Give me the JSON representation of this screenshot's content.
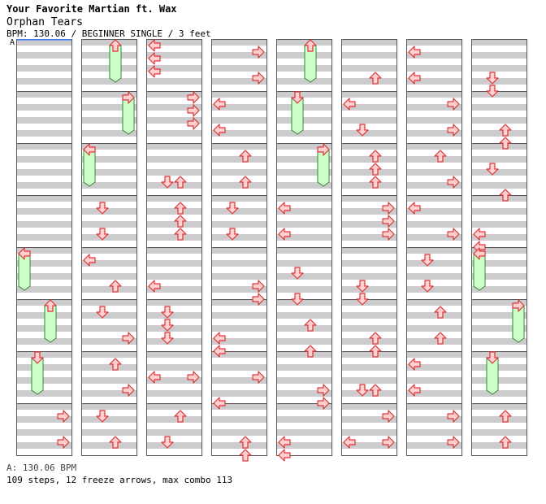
{
  "song": {
    "artist": "Your Favorite Martian ft. Wax",
    "title": "Orphan Tears",
    "info": "BPM: 130.06 / BEGINNER SINGLE / 3 feet"
  },
  "bpm_marker": "A",
  "footer": {
    "bpm_line": "A: 130.06 BPM",
    "stats": "109 steps, 12 freeze arrows, max combo 113"
  },
  "colors": {
    "stripe_gray": "#cccccc",
    "stripe_white": "#ffffff",
    "arrow_fill": "#ffd0d0",
    "arrow_stroke": "#dd3333",
    "freeze_fill": "#ccffcc",
    "freeze_stroke": "#338833",
    "marker_line": "#4488ff"
  },
  "chart": {
    "columns": 8,
    "measures_per_column": 8,
    "beats_per_measure": 4,
    "notes": [
      {
        "c": 0,
        "m": 4,
        "b": 0,
        "l": "L",
        "hold": 2.5
      },
      {
        "c": 0,
        "m": 5,
        "b": 0,
        "l": "U",
        "hold": 2.5
      },
      {
        "c": 0,
        "m": 6,
        "b": 0,
        "l": "D",
        "hold": 2.5
      },
      {
        "c": 0,
        "m": 7,
        "b": 0.5,
        "l": "R"
      },
      {
        "c": 0,
        "m": 7,
        "b": 2.5,
        "l": "R"
      },
      {
        "c": 1,
        "m": 0,
        "b": 0,
        "l": "U",
        "hold": 2.5
      },
      {
        "c": 1,
        "m": 1,
        "b": 0,
        "l": "R",
        "hold": 2.5
      },
      {
        "c": 1,
        "m": 2,
        "b": 0,
        "l": "L",
        "hold": 2.5
      },
      {
        "c": 1,
        "m": 3,
        "b": 0.5,
        "l": "D"
      },
      {
        "c": 1,
        "m": 3,
        "b": 2.5,
        "l": "D"
      },
      {
        "c": 1,
        "m": 4,
        "b": 0.5,
        "l": "L"
      },
      {
        "c": 1,
        "m": 4,
        "b": 2.5,
        "l": "U"
      },
      {
        "c": 1,
        "m": 5,
        "b": 0.5,
        "l": "D"
      },
      {
        "c": 1,
        "m": 5,
        "b": 2.5,
        "l": "R"
      },
      {
        "c": 1,
        "m": 6,
        "b": 0.5,
        "l": "U"
      },
      {
        "c": 1,
        "m": 6,
        "b": 2.5,
        "l": "R"
      },
      {
        "c": 1,
        "m": 7,
        "b": 0.5,
        "l": "D"
      },
      {
        "c": 1,
        "m": 7,
        "b": 2.5,
        "l": "U"
      },
      {
        "c": 2,
        "m": 0,
        "b": 0,
        "l": "L"
      },
      {
        "c": 2,
        "m": 0,
        "b": 1,
        "l": "L"
      },
      {
        "c": 2,
        "m": 0,
        "b": 2,
        "l": "L"
      },
      {
        "c": 2,
        "m": 1,
        "b": 0,
        "l": "R"
      },
      {
        "c": 2,
        "m": 1,
        "b": 1,
        "l": "R"
      },
      {
        "c": 2,
        "m": 1,
        "b": 2,
        "l": "R"
      },
      {
        "c": 2,
        "m": 2,
        "b": 2.5,
        "l": "D"
      },
      {
        "c": 2,
        "m": 2,
        "b": 2.5,
        "l": "U"
      },
      {
        "c": 2,
        "m": 3,
        "b": 0.5,
        "l": "U"
      },
      {
        "c": 2,
        "m": 3,
        "b": 1.5,
        "l": "U"
      },
      {
        "c": 2,
        "m": 3,
        "b": 2.5,
        "l": "U"
      },
      {
        "c": 2,
        "m": 4,
        "b": 2.5,
        "l": "L"
      },
      {
        "c": 2,
        "m": 5,
        "b": 0.5,
        "l": "D"
      },
      {
        "c": 2,
        "m": 5,
        "b": 1.5,
        "l": "D"
      },
      {
        "c": 2,
        "m": 5,
        "b": 2.5,
        "l": "D"
      },
      {
        "c": 2,
        "m": 6,
        "b": 1.5,
        "l": "L"
      },
      {
        "c": 2,
        "m": 6,
        "b": 1.5,
        "l": "R"
      },
      {
        "c": 2,
        "m": 7,
        "b": 0.5,
        "l": "U"
      },
      {
        "c": 2,
        "m": 7,
        "b": 2.5,
        "l": "D"
      },
      {
        "c": 3,
        "m": 0,
        "b": 0.5,
        "l": "R"
      },
      {
        "c": 3,
        "m": 0,
        "b": 2.5,
        "l": "R"
      },
      {
        "c": 3,
        "m": 1,
        "b": 0.5,
        "l": "L"
      },
      {
        "c": 3,
        "m": 1,
        "b": 2.5,
        "l": "L"
      },
      {
        "c": 3,
        "m": 2,
        "b": 0.5,
        "l": "U"
      },
      {
        "c": 3,
        "m": 2,
        "b": 2.5,
        "l": "U"
      },
      {
        "c": 3,
        "m": 3,
        "b": 0.5,
        "l": "D"
      },
      {
        "c": 3,
        "m": 3,
        "b": 2.5,
        "l": "D"
      },
      {
        "c": 3,
        "m": 4,
        "b": 2.5,
        "l": "R"
      },
      {
        "c": 3,
        "m": 4,
        "b": 3.5,
        "l": "R"
      },
      {
        "c": 3,
        "m": 5,
        "b": 2.5,
        "l": "L"
      },
      {
        "c": 3,
        "m": 5,
        "b": 3.5,
        "l": "L"
      },
      {
        "c": 3,
        "m": 6,
        "b": 1.5,
        "l": "R"
      },
      {
        "c": 3,
        "m": 6,
        "b": 3.5,
        "l": "L"
      },
      {
        "c": 3,
        "m": 7,
        "b": 2.5,
        "l": "U"
      },
      {
        "c": 3,
        "m": 7,
        "b": 3.5,
        "l": "U"
      },
      {
        "c": 4,
        "m": 0,
        "b": 0,
        "l": "U",
        "hold": 2.5
      },
      {
        "c": 4,
        "m": 1,
        "b": 0,
        "l": "D",
        "hold": 2.5
      },
      {
        "c": 4,
        "m": 2,
        "b": 0,
        "l": "R",
        "hold": 2.5
      },
      {
        "c": 4,
        "m": 3,
        "b": 0.5,
        "l": "L"
      },
      {
        "c": 4,
        "m": 3,
        "b": 2.5,
        "l": "L"
      },
      {
        "c": 4,
        "m": 4,
        "b": 1.5,
        "l": "D"
      },
      {
        "c": 4,
        "m": 4,
        "b": 3.5,
        "l": "D"
      },
      {
        "c": 4,
        "m": 5,
        "b": 1.5,
        "l": "U"
      },
      {
        "c": 4,
        "m": 5,
        "b": 3.5,
        "l": "U"
      },
      {
        "c": 4,
        "m": 6,
        "b": 2.5,
        "l": "R"
      },
      {
        "c": 4,
        "m": 6,
        "b": 3.5,
        "l": "R"
      },
      {
        "c": 4,
        "m": 7,
        "b": 2.5,
        "l": "L"
      },
      {
        "c": 4,
        "m": 7,
        "b": 3.5,
        "l": "L"
      },
      {
        "c": 5,
        "m": 0,
        "b": 2.5,
        "l": "U"
      },
      {
        "c": 5,
        "m": 1,
        "b": 0.5,
        "l": "L"
      },
      {
        "c": 5,
        "m": 1,
        "b": 2.5,
        "l": "D"
      },
      {
        "c": 5,
        "m": 2,
        "b": 0.5,
        "l": "U"
      },
      {
        "c": 5,
        "m": 2,
        "b": 1.5,
        "l": "U"
      },
      {
        "c": 5,
        "m": 2,
        "b": 2.5,
        "l": "U"
      },
      {
        "c": 5,
        "m": 3,
        "b": 0.5,
        "l": "R"
      },
      {
        "c": 5,
        "m": 3,
        "b": 1.5,
        "l": "R"
      },
      {
        "c": 5,
        "m": 3,
        "b": 2.5,
        "l": "R"
      },
      {
        "c": 5,
        "m": 4,
        "b": 2.5,
        "l": "D"
      },
      {
        "c": 5,
        "m": 4,
        "b": 3.5,
        "l": "D"
      },
      {
        "c": 5,
        "m": 5,
        "b": 2.5,
        "l": "U"
      },
      {
        "c": 5,
        "m": 5,
        "b": 3.5,
        "l": "U"
      },
      {
        "c": 5,
        "m": 6,
        "b": 2.5,
        "l": "D"
      },
      {
        "c": 5,
        "m": 6,
        "b": 2.5,
        "l": "U"
      },
      {
        "c": 5,
        "m": 7,
        "b": 0.5,
        "l": "R"
      },
      {
        "c": 5,
        "m": 7,
        "b": 2.5,
        "l": "L"
      },
      {
        "c": 5,
        "m": 7,
        "b": 2.5,
        "l": "R"
      },
      {
        "c": 6,
        "m": 0,
        "b": 0.5,
        "l": "L"
      },
      {
        "c": 6,
        "m": 0,
        "b": 2.5,
        "l": "L"
      },
      {
        "c": 6,
        "m": 1,
        "b": 0.5,
        "l": "R"
      },
      {
        "c": 6,
        "m": 1,
        "b": 2.5,
        "l": "R"
      },
      {
        "c": 6,
        "m": 2,
        "b": 0.5,
        "l": "U"
      },
      {
        "c": 6,
        "m": 2,
        "b": 2.5,
        "l": "R"
      },
      {
        "c": 6,
        "m": 3,
        "b": 0.5,
        "l": "L"
      },
      {
        "c": 6,
        "m": 3,
        "b": 2.5,
        "l": "R"
      },
      {
        "c": 6,
        "m": 4,
        "b": 0.5,
        "l": "D"
      },
      {
        "c": 6,
        "m": 4,
        "b": 2.5,
        "l": "D"
      },
      {
        "c": 6,
        "m": 5,
        "b": 0.5,
        "l": "U"
      },
      {
        "c": 6,
        "m": 5,
        "b": 2.5,
        "l": "U"
      },
      {
        "c": 6,
        "m": 6,
        "b": 0.5,
        "l": "L"
      },
      {
        "c": 6,
        "m": 6,
        "b": 2.5,
        "l": "L"
      },
      {
        "c": 6,
        "m": 7,
        "b": 0.5,
        "l": "R"
      },
      {
        "c": 6,
        "m": 7,
        "b": 2.5,
        "l": "R"
      },
      {
        "c": 7,
        "m": 0,
        "b": 2.5,
        "l": "D"
      },
      {
        "c": 7,
        "m": 0,
        "b": 3.5,
        "l": "D"
      },
      {
        "c": 7,
        "m": 1,
        "b": 2.5,
        "l": "U"
      },
      {
        "c": 7,
        "m": 1,
        "b": 3.5,
        "l": "U"
      },
      {
        "c": 7,
        "m": 2,
        "b": 1.5,
        "l": "D"
      },
      {
        "c": 7,
        "m": 2,
        "b": 3.5,
        "l": "U"
      },
      {
        "c": 7,
        "m": 3,
        "b": 2.5,
        "l": "L"
      },
      {
        "c": 7,
        "m": 3,
        "b": 3.5,
        "l": "L"
      },
      {
        "c": 7,
        "m": 4,
        "b": 0,
        "l": "L",
        "hold": 2.5
      },
      {
        "c": 7,
        "m": 5,
        "b": 0,
        "l": "R",
        "hold": 2.5
      },
      {
        "c": 7,
        "m": 6,
        "b": 0,
        "l": "D",
        "hold": 2.5
      },
      {
        "c": 7,
        "m": 7,
        "b": 0.5,
        "l": "U"
      },
      {
        "c": 7,
        "m": 7,
        "b": 2.5,
        "l": "U"
      }
    ]
  }
}
